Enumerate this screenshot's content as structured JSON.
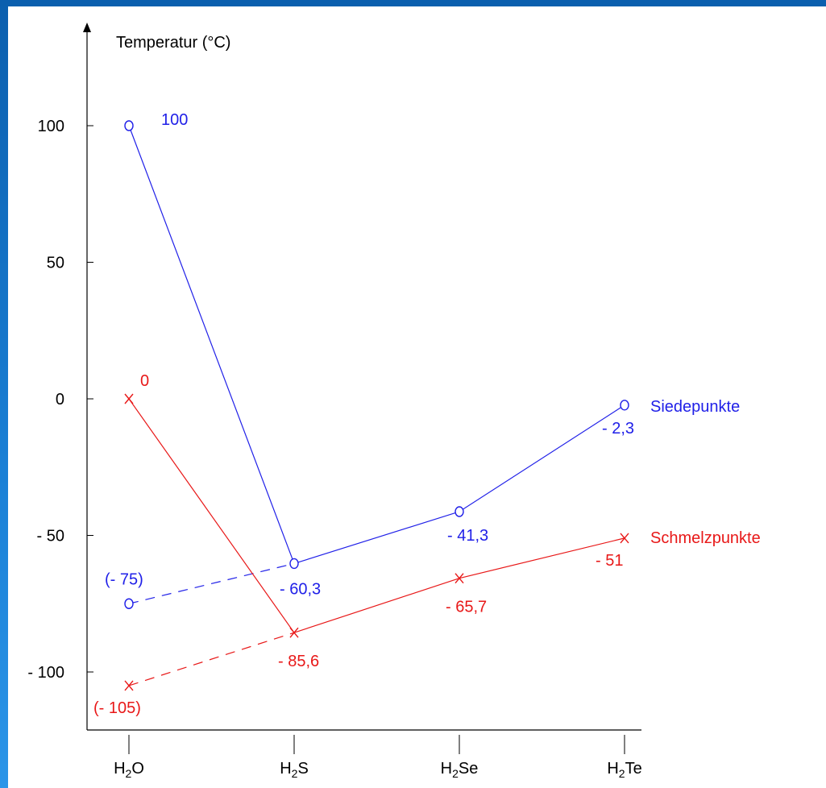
{
  "chart_data": {
    "type": "line",
    "ylabel": "Temperatur (°C)",
    "y_ticks": [
      {
        "value": 100,
        "label": "100"
      },
      {
        "value": 50,
        "label": "50"
      },
      {
        "value": 0,
        "label": "0"
      },
      {
        "value": -50,
        "label": "- 50"
      },
      {
        "value": -100,
        "label": "- 100"
      }
    ],
    "ylim": [
      -122,
      118
    ],
    "categories": [
      {
        "base": "H",
        "sub": "2",
        "rest": "O"
      },
      {
        "base": "H",
        "sub": "2",
        "rest": "S"
      },
      {
        "base": "H",
        "sub": "2",
        "rest": "Se"
      },
      {
        "base": "H",
        "sub": "2",
        "rest": "Te"
      }
    ],
    "series": [
      {
        "name": "Siedepunkte",
        "color": "#2020e8",
        "marker": "o",
        "values": [
          100,
          -60.3,
          -41.3,
          -2.3
        ],
        "labels": [
          "100",
          "- 60,3",
          "- 41,3",
          "- 2,3"
        ],
        "extrapolated": {
          "value": -75,
          "label": "(- 75)"
        }
      },
      {
        "name": "Schmelzpunkte",
        "color": "#e81818",
        "marker": "x",
        "values": [
          0,
          -85.6,
          -65.7,
          -51
        ],
        "labels": [
          "0",
          "- 85,6",
          "- 65,7",
          "- 51"
        ],
        "extrapolated": {
          "value": -105,
          "label": "(- 105)"
        }
      }
    ]
  }
}
